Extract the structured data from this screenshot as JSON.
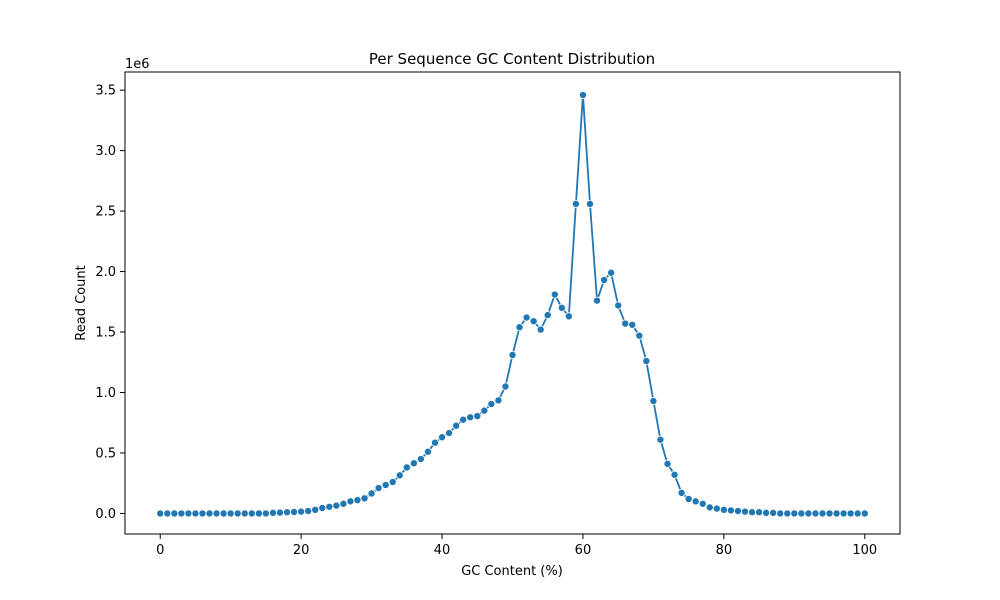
{
  "chart_data": {
    "type": "line",
    "title": "Per Sequence GC Content Distribution",
    "xlabel": "GC Content (%)",
    "ylabel": "Read Count",
    "y_offset_label": "1e6",
    "xlim": [
      -5,
      105
    ],
    "ylim": [
      -0.17,
      3.65
    ],
    "y_multiplier": 1000000,
    "xticks": [
      0,
      20,
      40,
      60,
      80,
      100
    ],
    "yticks": [
      0.0,
      0.5,
      1.0,
      1.5,
      2.0,
      2.5,
      3.0,
      3.5
    ],
    "xtick_labels": [
      "0",
      "20",
      "40",
      "60",
      "80",
      "100"
    ],
    "ytick_labels": [
      "0.0",
      "0.5",
      "1.0",
      "1.5",
      "2.0",
      "2.5",
      "3.0",
      "3.5"
    ],
    "grid": false,
    "marker": "circle",
    "colors": {
      "series": "#1f77b4"
    },
    "x": [
      0,
      1,
      2,
      3,
      4,
      5,
      6,
      7,
      8,
      9,
      10,
      11,
      12,
      13,
      14,
      15,
      16,
      17,
      18,
      19,
      20,
      21,
      22,
      23,
      24,
      25,
      26,
      27,
      28,
      29,
      30,
      31,
      32,
      33,
      34,
      35,
      36,
      37,
      38,
      39,
      40,
      41,
      42,
      43,
      44,
      45,
      46,
      47,
      48,
      49,
      50,
      51,
      52,
      53,
      54,
      55,
      56,
      57,
      58,
      59,
      60,
      61,
      62,
      63,
      64,
      65,
      66,
      67,
      68,
      69,
      70,
      71,
      72,
      73,
      74,
      75,
      76,
      77,
      78,
      79,
      80,
      81,
      82,
      83,
      84,
      85,
      86,
      87,
      88,
      89,
      90,
      91,
      92,
      93,
      94,
      95,
      96,
      97,
      98,
      99,
      100
    ],
    "series": [
      {
        "values": [
          0.0,
          0.0,
          0.0,
          0.0,
          0.0,
          0.0,
          0.0,
          0.0,
          0.0,
          0.0,
          0.0,
          0.0,
          0.0,
          0.0,
          0.0,
          0.0,
          0.005,
          0.007,
          0.01,
          0.012,
          0.015,
          0.02,
          0.03,
          0.045,
          0.055,
          0.065,
          0.08,
          0.1,
          0.11,
          0.125,
          0.165,
          0.21,
          0.235,
          0.26,
          0.315,
          0.38,
          0.415,
          0.45,
          0.51,
          0.585,
          0.63,
          0.665,
          0.725,
          0.775,
          0.795,
          0.805,
          0.85,
          0.905,
          0.935,
          1.05,
          1.31,
          1.54,
          1.62,
          1.59,
          1.52,
          1.64,
          1.81,
          1.7,
          1.63,
          2.56,
          3.46,
          2.56,
          1.76,
          1.93,
          1.99,
          1.72,
          1.57,
          1.56,
          1.47,
          1.26,
          0.93,
          0.61,
          0.41,
          0.32,
          0.17,
          0.12,
          0.1,
          0.08,
          0.05,
          0.04,
          0.03,
          0.025,
          0.02,
          0.015,
          0.01,
          0.01,
          0.005,
          0.005,
          0.0,
          0.0,
          0.0,
          0.0,
          0.0,
          0.0,
          0.0,
          0.0,
          0.0,
          0.0,
          0.0,
          0.0,
          0.0
        ]
      }
    ]
  }
}
